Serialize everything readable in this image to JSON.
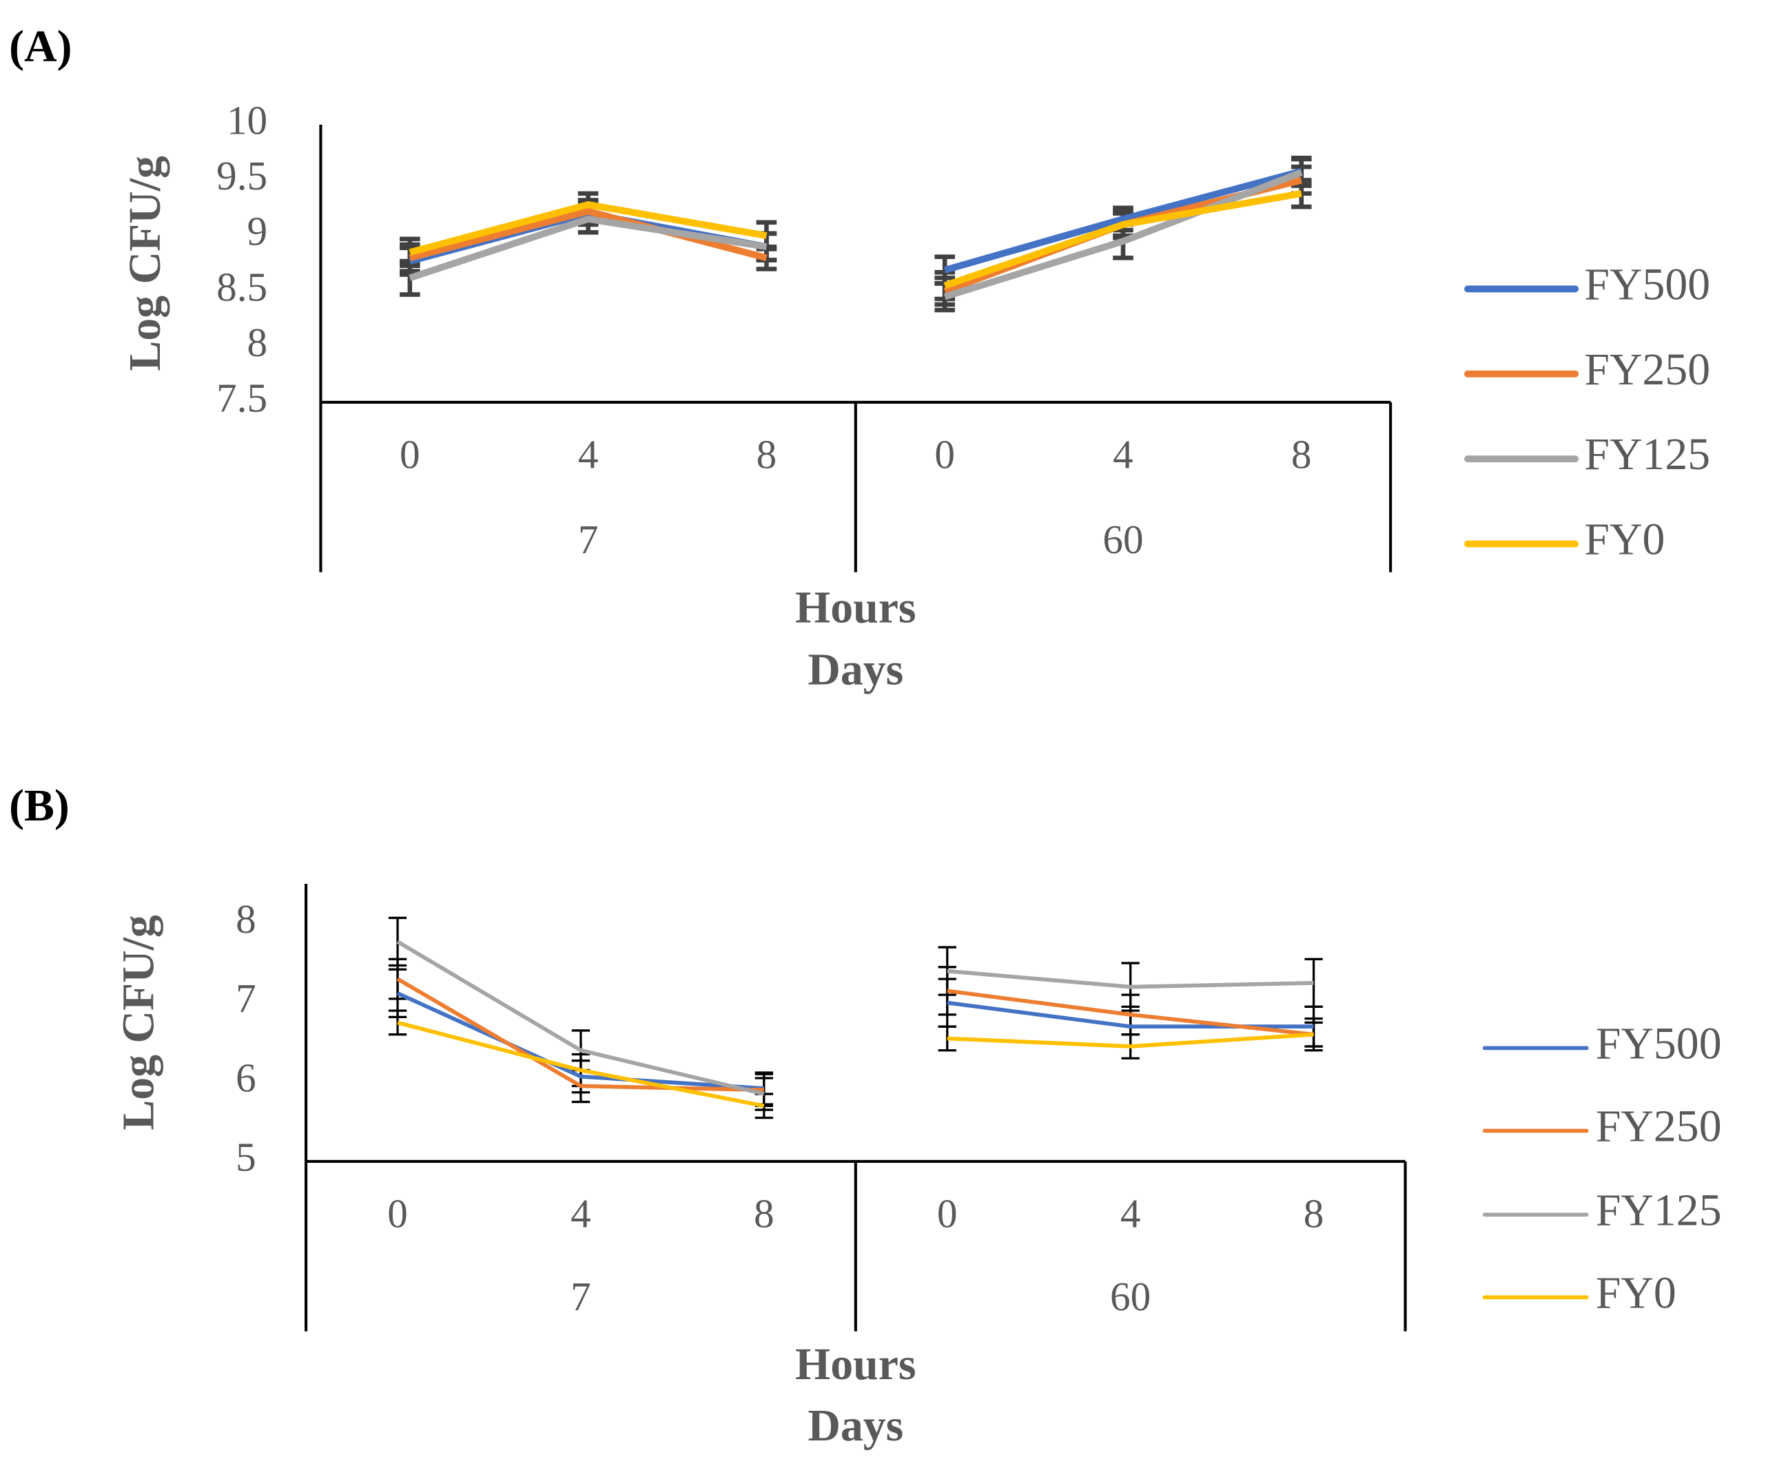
{
  "chart_data": [
    {
      "type": "line",
      "panel_label": "(A)",
      "y_label": "Log CFU/g",
      "x_label": "Hours",
      "x_group_label": "Days",
      "groups": [
        {
          "name": "7",
          "categories": [
            "0",
            "4",
            "8"
          ]
        },
        {
          "name": "60",
          "categories": [
            "0",
            "4",
            "8"
          ]
        }
      ],
      "ylim": [
        7.5,
        10
      ],
      "yticks": [
        7.5,
        8,
        8.5,
        9,
        9.5,
        10
      ],
      "error_color": "#404040",
      "series": [
        {
          "name": "FY500",
          "color": "#4472c4",
          "values": [
            8.77,
            9.2,
            8.9,
            8.69,
            9.15,
            9.58
          ],
          "errors": [
            0.12,
            0.1,
            0.12,
            0.12,
            0.1,
            0.12
          ]
        },
        {
          "name": "FY250",
          "color": "#ed7d31",
          "values": [
            8.8,
            9.22,
            8.8,
            8.5,
            9.1,
            9.5
          ],
          "errors": [
            0.12,
            0.1,
            0.1,
            0.12,
            0.1,
            0.12
          ]
        },
        {
          "name": "FY125",
          "color": "#a5a5a5",
          "values": [
            8.62,
            9.15,
            8.9,
            8.45,
            8.95,
            9.57
          ],
          "errors": [
            0.15,
            0.12,
            0.12,
            0.12,
            0.15,
            0.12
          ]
        },
        {
          "name": "FY0",
          "color": "#ffc000",
          "values": [
            8.85,
            9.28,
            9.0,
            8.55,
            9.1,
            9.38
          ],
          "errors": [
            0.12,
            0.1,
            0.12,
            0.12,
            0.12,
            0.12
          ]
        }
      ]
    },
    {
      "type": "line",
      "panel_label": "(B)",
      "y_label": "Log CFU/g",
      "x_label": "Hours",
      "x_group_label": "Days",
      "groups": [
        {
          "name": "7",
          "categories": [
            "0",
            "4",
            "8"
          ]
        },
        {
          "name": "60",
          "categories": [
            "0",
            "4",
            "8"
          ]
        }
      ],
      "ylim": [
        5,
        8.5
      ],
      "yticks": [
        5,
        6,
        7,
        8
      ],
      "error_color": "#000000",
      "series": [
        {
          "name": "FY500",
          "color": "#4472c4",
          "values": [
            7.12,
            6.07,
            5.92,
            7.0,
            6.7,
            6.7
          ],
          "errors": [
            0.3,
            0.2,
            0.2,
            0.3,
            0.25,
            0.25
          ]
        },
        {
          "name": "FY250",
          "color": "#ed7d31",
          "values": [
            7.3,
            5.95,
            5.9,
            7.15,
            6.85,
            6.6
          ],
          "errors": [
            0.25,
            0.2,
            0.2,
            0.3,
            0.25,
            0.2
          ]
        },
        {
          "name": "FY125",
          "color": "#a5a5a5",
          "values": [
            7.77,
            6.4,
            5.85,
            7.4,
            7.2,
            7.25
          ],
          "errors": [
            0.3,
            0.25,
            0.2,
            0.3,
            0.3,
            0.3
          ]
        },
        {
          "name": "FY0",
          "color": "#ffc000",
          "values": [
            6.75,
            6.15,
            5.7,
            6.55,
            6.45,
            6.6
          ],
          "errors": [
            0.15,
            0.2,
            0.15,
            0.15,
            0.15,
            0.15
          ]
        }
      ]
    }
  ]
}
